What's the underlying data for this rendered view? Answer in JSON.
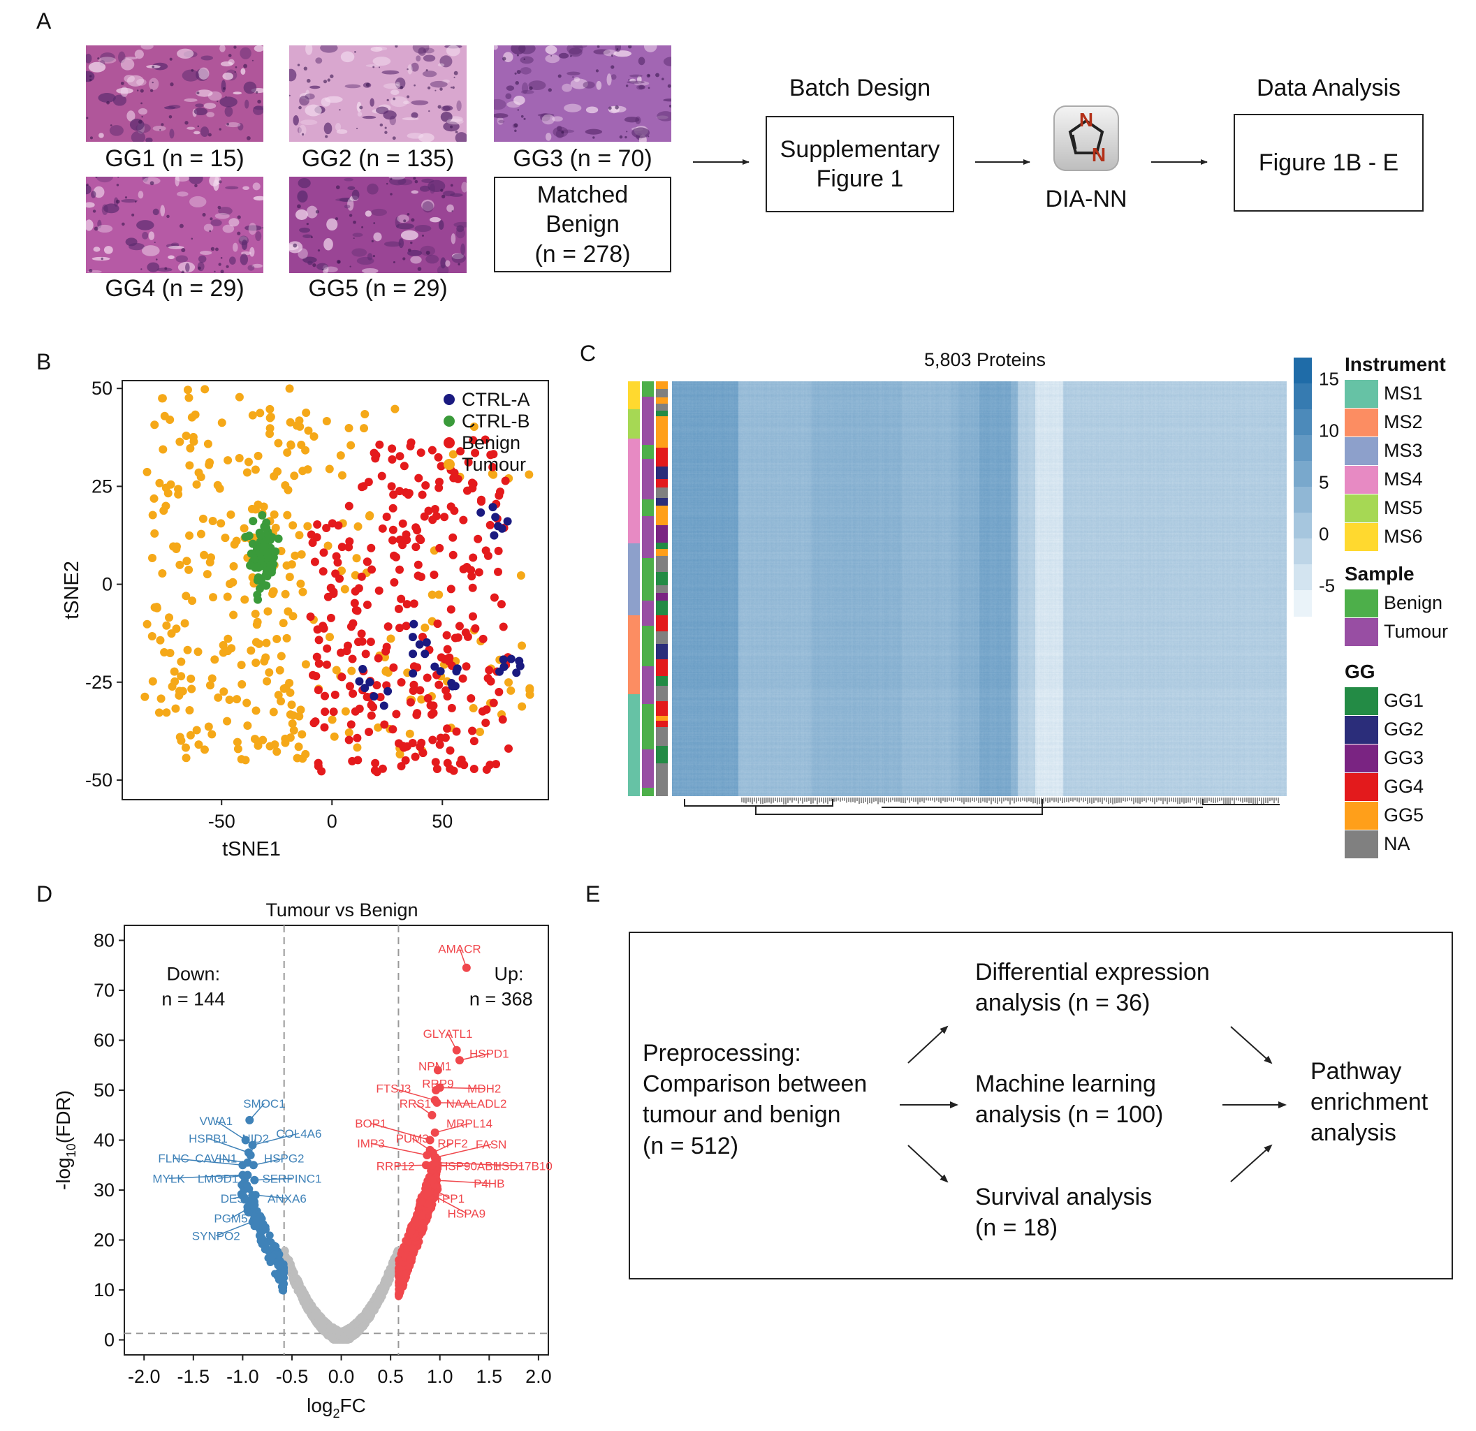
{
  "panels": {
    "a": "A",
    "b": "B",
    "c": "C",
    "d": "D",
    "e": "E"
  },
  "panel_a": {
    "images": [
      {
        "label": "GG1 (n = 15)",
        "color": "#b0569a"
      },
      {
        "label": "GG2 (n = 135)",
        "color": "#d9a7cf"
      },
      {
        "label": "GG3 (n = 70)",
        "color": "#a266b3"
      },
      {
        "label": "GG4 (n = 29)",
        "color": "#b65aa5"
      },
      {
        "label": "GG5 (n = 29)",
        "color": "#9a4595"
      }
    ],
    "matched_benign": [
      "Matched",
      "Benign",
      "(n = 278)"
    ],
    "batch_design_title": "Batch Design",
    "batch_design_box": [
      "Supplementary",
      "Figure 1"
    ],
    "dia_nn_label": "DIA-NN",
    "dia_nn_icon": "imidazole-app-icon",
    "dia_nn_letters": [
      "N",
      "N"
    ],
    "data_analysis_title": "Data Analysis",
    "data_analysis_box": "Figure 1B - E"
  },
  "chart_data": [
    {
      "type": "scatter",
      "panel": "B",
      "xlabel": "tSNE1",
      "ylabel": "tSNE2",
      "xlim": [
        -95,
        98
      ],
      "ylim": [
        -55,
        52
      ],
      "xticks": [
        -50,
        0,
        50
      ],
      "yticks": [
        50,
        25,
        0,
        -25,
        -50
      ],
      "legend_position": "top-right",
      "series": [
        {
          "name": "CTRL-A",
          "color": "#1a1a80"
        },
        {
          "name": "CTRL-B",
          "color": "#3a9a3a"
        },
        {
          "name": "Benign",
          "color": "#e41a1c"
        },
        {
          "name": "Tumour",
          "color": "#f5a818"
        }
      ]
    },
    {
      "type": "heatmap",
      "panel": "C",
      "title": "5,803 Proteins",
      "colorbar_ticks": [
        "15",
        "10",
        "5",
        "0",
        "-5"
      ],
      "colorbar_range": [
        -8,
        17
      ],
      "annotation_tracks": [
        "Instrument",
        "Sample",
        "GG"
      ],
      "legend": {
        "instrument": {
          "title": "Instrument",
          "items": [
            {
              "label": "MS1",
              "color": "#66c2a5"
            },
            {
              "label": "MS2",
              "color": "#fc8d62"
            },
            {
              "label": "MS3",
              "color": "#8da0cb"
            },
            {
              "label": "MS4",
              "color": "#e78ac3"
            },
            {
              "label": "MS5",
              "color": "#a6d854"
            },
            {
              "label": "MS6",
              "color": "#ffd92f"
            }
          ]
        },
        "sample": {
          "title": "Sample",
          "items": [
            {
              "label": "Benign",
              "color": "#4daf4a"
            },
            {
              "label": "Tumour",
              "color": "#984ea3"
            }
          ]
        },
        "gg": {
          "title": "GG",
          "items": [
            {
              "label": "GG1",
              "color": "#238b45"
            },
            {
              "label": "GG2",
              "color": "#2b2d7a"
            },
            {
              "label": "GG3",
              "color": "#7a2482"
            },
            {
              "label": "GG4",
              "color": "#e31a1c"
            },
            {
              "label": "GG5",
              "color": "#ff9f1a"
            },
            {
              "label": "NA",
              "color": "#808080"
            }
          ]
        }
      }
    },
    {
      "type": "scatter",
      "panel": "D",
      "title": "Tumour vs Benign",
      "xlabel_main": "log",
      "xlabel_sub": "2",
      "xlabel_tail": "FC",
      "ylabel_head": "-log",
      "ylabel_sub": "10",
      "ylabel_tail": "(FDR)",
      "xlim": [
        -2.2,
        2.1
      ],
      "ylim": [
        -3,
        83
      ],
      "xticks": [
        "-2.0",
        "-1.5",
        "-1.0",
        "-0.5",
        "0.0",
        "0.5",
        "1.0",
        "1.5",
        "2.0"
      ],
      "yticks": [
        "0",
        "10",
        "20",
        "30",
        "40",
        "50",
        "60",
        "70",
        "80"
      ],
      "thresholds": {
        "x": [
          -0.58,
          0.58
        ],
        "y": 1.3
      },
      "down_text": [
        "Down:",
        "n = 144"
      ],
      "up_text": [
        "Up:",
        "n = 368"
      ],
      "colors": {
        "down": "#3f82b8",
        "up": "#f0474c",
        "ns": "#bdbdbd"
      },
      "labels": [
        {
          "name": "AMACR",
          "x": 1.27,
          "y": 74.5,
          "side": "up"
        },
        {
          "name": "GLYATL1",
          "x": 1.17,
          "y": 58.0,
          "side": "up"
        },
        {
          "name": "HSPD1",
          "x": 1.2,
          "y": 56.0,
          "side": "up"
        },
        {
          "name": "NPM1",
          "x": 0.98,
          "y": 54.0,
          "side": "up"
        },
        {
          "name": "RRP9",
          "x": 0.96,
          "y": 50.0,
          "side": "up"
        },
        {
          "name": "MDH2",
          "x": 1.0,
          "y": 50.5,
          "side": "up"
        },
        {
          "name": "FTSJ3",
          "x": 0.95,
          "y": 48.0,
          "side": "up"
        },
        {
          "name": "NAALADL2",
          "x": 0.97,
          "y": 47.5,
          "side": "up"
        },
        {
          "name": "RRS1",
          "x": 0.92,
          "y": 45.0,
          "side": "up"
        },
        {
          "name": "MRPL14",
          "x": 0.95,
          "y": 41.5,
          "side": "up"
        },
        {
          "name": "BOP1",
          "x": 0.9,
          "y": 40.0,
          "side": "up"
        },
        {
          "name": "PUM3",
          "x": 0.9,
          "y": 38.0,
          "side": "up"
        },
        {
          "name": "RPF2",
          "x": 0.93,
          "y": 37.5,
          "side": "up"
        },
        {
          "name": "IMP3",
          "x": 0.87,
          "y": 37.0,
          "side": "up"
        },
        {
          "name": "FASN",
          "x": 0.95,
          "y": 36.5,
          "side": "up"
        },
        {
          "name": "RRP12",
          "x": 0.86,
          "y": 35.0,
          "side": "up"
        },
        {
          "name": "HSP90AB1",
          "x": 0.92,
          "y": 35.0,
          "side": "up"
        },
        {
          "name": "HSD17B10",
          "x": 0.95,
          "y": 35.5,
          "side": "up"
        },
        {
          "name": "P4HB",
          "x": 0.92,
          "y": 32.0,
          "side": "up"
        },
        {
          "name": "TPP1",
          "x": 0.86,
          "y": 31.0,
          "side": "up"
        },
        {
          "name": "HSPA9",
          "x": 0.88,
          "y": 29.5,
          "side": "up"
        },
        {
          "name": "SMOC1",
          "x": -0.93,
          "y": 44.0,
          "side": "down"
        },
        {
          "name": "VWA1",
          "x": -0.97,
          "y": 40.0,
          "side": "down"
        },
        {
          "name": "HSPB1",
          "x": -0.94,
          "y": 37.5,
          "side": "down"
        },
        {
          "name": "NID2",
          "x": -0.92,
          "y": 37.0,
          "side": "down"
        },
        {
          "name": "COL4A6",
          "x": -0.9,
          "y": 39.0,
          "side": "down"
        },
        {
          "name": "FLNC",
          "x": -1.0,
          "y": 35.0,
          "side": "down"
        },
        {
          "name": "CAVIN1",
          "x": -0.95,
          "y": 35.5,
          "side": "down"
        },
        {
          "name": "HSPG2",
          "x": -0.89,
          "y": 35.0,
          "side": "down"
        },
        {
          "name": "MYLK",
          "x": -1.0,
          "y": 33.0,
          "side": "down"
        },
        {
          "name": "LMOD1",
          "x": -0.95,
          "y": 33.0,
          "side": "down"
        },
        {
          "name": "SERPINC1",
          "x": -0.88,
          "y": 32.0,
          "side": "down"
        },
        {
          "name": "DES",
          "x": -0.9,
          "y": 29.0,
          "side": "down"
        },
        {
          "name": "ANXA6",
          "x": -0.87,
          "y": 29.0,
          "side": "down"
        },
        {
          "name": "PGM5",
          "x": -0.88,
          "y": 27.0,
          "side": "down"
        },
        {
          "name": "SYNPO2",
          "x": -0.86,
          "y": 24.0,
          "side": "down"
        }
      ]
    }
  ],
  "panel_e": {
    "preprocessing": [
      "Preprocessing:",
      "Comparison between",
      "tumour and benign",
      "(n = 512)"
    ],
    "diff_expr": [
      "Differential expression",
      "analysis (n = 36)"
    ],
    "ml": [
      "Machine learning",
      "analysis (n = 100)"
    ],
    "survival": [
      "Survival analysis",
      "(n = 18)"
    ],
    "pathway": [
      "Pathway",
      "enrichment",
      "analysis"
    ]
  }
}
